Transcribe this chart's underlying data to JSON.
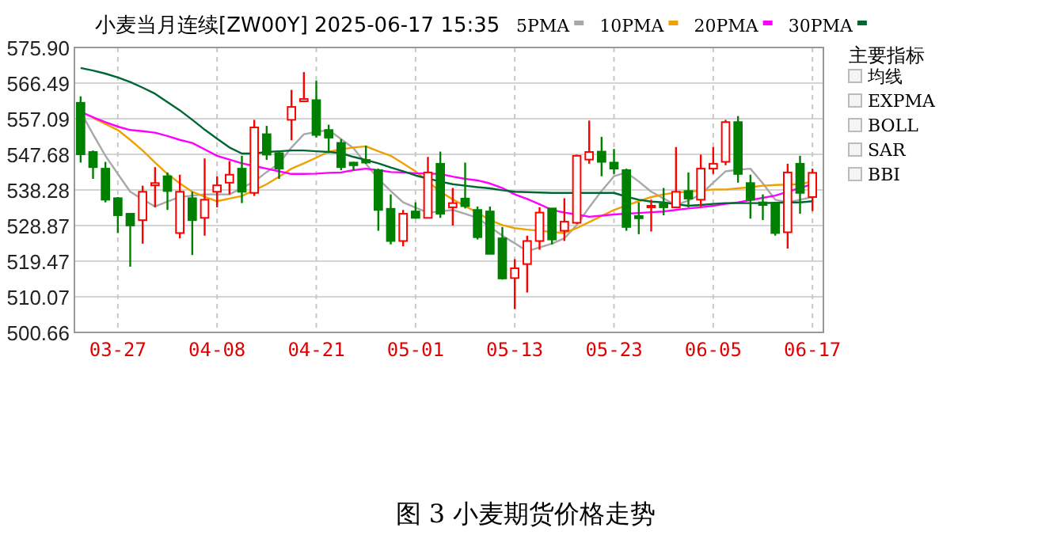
{
  "chart_data": {
    "type": "candlestick",
    "title": "小麦当月连续[ZW00Y] 2025-06-17 15:35",
    "categories": [
      null,
      null,
      null,
      "03-27",
      null,
      null,
      null,
      null,
      null,
      null,
      null,
      "04-08",
      null,
      null,
      null,
      null,
      null,
      null,
      null,
      "04-21",
      null,
      null,
      null,
      null,
      null,
      null,
      null,
      "05-01",
      null,
      null,
      null,
      null,
      null,
      null,
      null,
      "05-13",
      null,
      null,
      null,
      null,
      null,
      null,
      null,
      "05-23",
      null,
      null,
      null,
      null,
      null,
      null,
      null,
      "06-05",
      null,
      null,
      null,
      null,
      null,
      null,
      null,
      "06-17"
    ],
    "ohlc": [
      [
        561.3,
        563.0,
        545.5,
        547.7
      ],
      [
        548.3,
        548.7,
        541.2,
        544.3
      ],
      [
        543.9,
        545.7,
        535.0,
        535.7
      ],
      [
        536.1,
        536.4,
        526.9,
        531.6
      ],
      [
        532.0,
        532.0,
        518.0,
        528.9
      ],
      [
        530.3,
        539.4,
        524.1,
        537.8
      ],
      [
        539.5,
        544.3,
        533.7,
        540.1
      ],
      [
        541.9,
        542.9,
        533.0,
        538.0
      ],
      [
        526.9,
        542.3,
        525.5,
        537.8
      ],
      [
        536.1,
        537.8,
        521.1,
        530.3
      ],
      [
        530.9,
        546.6,
        526.2,
        535.7
      ],
      [
        537.8,
        541.9,
        533.7,
        539.5
      ],
      [
        540.2,
        545.9,
        537.1,
        542.3
      ],
      [
        543.9,
        547.3,
        534.8,
        537.8
      ],
      [
        537.5,
        556.8,
        536.7,
        554.8
      ],
      [
        553.0,
        555.2,
        546.2,
        547.6
      ],
      [
        548.0,
        548.7,
        541.2,
        543.9
      ],
      [
        556.8,
        564.7,
        551.4,
        560.2
      ],
      [
        561.7,
        569.4,
        561.7,
        562.3
      ],
      [
        562.0,
        567.1,
        552.1,
        552.8
      ],
      [
        554.1,
        555.5,
        548.0,
        552.1
      ],
      [
        550.7,
        551.7,
        543.5,
        544.3
      ],
      [
        545.5,
        545.7,
        543.5,
        544.8
      ],
      [
        546.2,
        550.0,
        545.2,
        545.5
      ],
      [
        543.5,
        543.9,
        527.5,
        533.0
      ],
      [
        533.3,
        537.1,
        523.9,
        524.8
      ],
      [
        524.8,
        533.0,
        523.4,
        532.0
      ],
      [
        532.6,
        535.0,
        530.9,
        530.9
      ],
      [
        530.9,
        547.0,
        530.9,
        542.9
      ],
      [
        545.2,
        548.4,
        530.9,
        532.0
      ],
      [
        533.7,
        538.8,
        528.9,
        534.8
      ],
      [
        536.0,
        545.5,
        533.4,
        534.0
      ],
      [
        533.0,
        533.9,
        525.2,
        525.8
      ],
      [
        532.6,
        533.9,
        521.4,
        521.4
      ],
      [
        525.5,
        528.5,
        514.6,
        514.9
      ],
      [
        515.0,
        520.0,
        506.8,
        517.6
      ],
      [
        518.7,
        526.2,
        511.2,
        524.8
      ],
      [
        524.8,
        533.7,
        522.5,
        532.3
      ],
      [
        533.4,
        533.4,
        523.9,
        525.2
      ],
      [
        527.5,
        536.1,
        524.8,
        529.9
      ],
      [
        529.6,
        547.6,
        529.3,
        547.3
      ],
      [
        546.3,
        556.6,
        545.2,
        548.3
      ],
      [
        548.4,
        552.3,
        541.9,
        545.7
      ],
      [
        545.5,
        549.1,
        542.5,
        543.9
      ],
      [
        543.5,
        543.9,
        527.5,
        528.5
      ],
      [
        531.4,
        535.0,
        526.6,
        530.8
      ],
      [
        533.7,
        535.7,
        527.3,
        534.1
      ],
      [
        534.6,
        538.8,
        531.6,
        533.7
      ],
      [
        533.7,
        549.6,
        533.7,
        537.8
      ],
      [
        538.0,
        542.9,
        533.7,
        536.0
      ],
      [
        535.7,
        547.6,
        533.9,
        543.9
      ],
      [
        543.9,
        549.6,
        542.5,
        545.2
      ],
      [
        545.7,
        556.8,
        544.8,
        556.2
      ],
      [
        556.2,
        557.8,
        540.2,
        542.5
      ],
      [
        540.1,
        542.3,
        530.7,
        535.7
      ],
      [
        535.0,
        537.1,
        530.3,
        534.3
      ],
      [
        534.8,
        535.0,
        526.2,
        526.9
      ],
      [
        527.1,
        545.2,
        522.8,
        542.9
      ],
      [
        545.2,
        547.3,
        532.0,
        537.5
      ],
      [
        536.4,
        543.9,
        532.7,
        542.8
      ]
    ],
    "series": [
      {
        "name": "5PMA",
        "type": "line",
        "color": "#a8a8a8",
        "values": [
          558.9,
          553.0,
          547.3,
          542.5,
          537.8,
          535.8,
          533.9,
          535.2,
          536.4,
          536.8,
          537.1,
          537.1,
          537.1,
          538.8,
          540.5,
          543.0,
          545.3,
          549.5,
          553.0,
          553.6,
          554.1,
          551.7,
          549.3,
          545.2,
          541.2,
          538.0,
          535.0,
          533.6,
          532.3,
          532.6,
          533.0,
          532.0,
          530.9,
          528.5,
          526.2,
          524.2,
          522.1,
          523.1,
          524.1,
          525.5,
          529.0,
          533.7,
          538.0,
          541.9,
          542.9,
          540.5,
          537.8,
          536.0,
          534.3,
          535.5,
          537.1,
          540.2,
          543.2,
          543.6,
          543.9,
          540.0,
          535.7,
          535.0,
          535.7,
          536.4
        ]
      },
      {
        "name": "10PMA",
        "type": "line",
        "color": "#f0a000",
        "values": [
          null,
          557.3,
          555.7,
          554.1,
          551.5,
          548.7,
          545.5,
          542.5,
          540.0,
          537.8,
          536.5,
          535.3,
          536.0,
          536.7,
          538.2,
          539.8,
          541.8,
          543.9,
          545.3,
          546.8,
          548.4,
          549.0,
          549.5,
          549.8,
          548.5,
          547.3,
          545.3,
          543.2,
          540.5,
          537.8,
          535.8,
          534.0,
          532.3,
          530.3,
          529.0,
          528.2,
          527.8,
          527.5,
          527.2,
          526.9,
          528.2,
          529.8,
          531.4,
          533.0,
          534.2,
          535.3,
          536.4,
          537.1,
          537.6,
          537.8,
          538.1,
          538.4,
          538.4,
          538.7,
          539.0,
          539.4,
          539.6,
          539.7,
          539.8,
          540.5
        ]
      },
      {
        "name": "20PMA",
        "type": "line",
        "color": "#ff00ff",
        "values": [
          558.9,
          557.5,
          556.2,
          555.0,
          554.1,
          553.8,
          553.4,
          552.5,
          551.5,
          550.7,
          549.0,
          547.3,
          546.3,
          545.3,
          544.6,
          543.9,
          543.2,
          542.5,
          542.5,
          542.6,
          542.8,
          542.9,
          543.5,
          543.9,
          543.5,
          543.0,
          542.9,
          542.7,
          542.6,
          542.5,
          541.8,
          541.2,
          540.8,
          540.0,
          538.8,
          537.1,
          535.9,
          534.5,
          533.0,
          532.3,
          531.8,
          531.2,
          531.5,
          531.8,
          532.0,
          532.2,
          532.4,
          532.6,
          533.0,
          533.4,
          533.7,
          534.1,
          534.6,
          535.0,
          535.6,
          536.2,
          536.8,
          537.8,
          538.8,
          539.8
        ]
      },
      {
        "name": "30PMA",
        "type": "line",
        "color": "#006633",
        "values": [
          570.5,
          569.8,
          569.0,
          568.0,
          566.8,
          565.3,
          563.7,
          561.5,
          559.3,
          556.8,
          554.2,
          551.8,
          549.5,
          547.9,
          547.9,
          548.3,
          548.5,
          548.7,
          548.7,
          548.5,
          548.3,
          548.0,
          547.0,
          546.2,
          545.3,
          544.2,
          543.2,
          542.1,
          541.3,
          540.5,
          539.8,
          539.4,
          539.0,
          538.7,
          538.2,
          537.8,
          537.7,
          537.6,
          537.5,
          537.5,
          537.5,
          537.5,
          537.5,
          537.5,
          536.5,
          535.7,
          535.2,
          535.0,
          534.5,
          534.1,
          534.3,
          534.6,
          534.8,
          534.8,
          534.8,
          534.8,
          534.9,
          535.0,
          535.0,
          535.3
        ]
      }
    ],
    "ylim": [
      500.66,
      575.9
    ],
    "yticks": [
      {
        "value": 575.9,
        "label": "575.90"
      },
      566.49,
      557.09,
      547.68,
      538.28,
      528.87,
      519.47,
      510.07,
      500.66
    ],
    "grid": true,
    "legend": "top right",
    "annotations": [
      "主要指标",
      "均线",
      "EXPMA",
      "BOLL",
      "SAR",
      "BBI",
      "图 3   小麦期货价格走势"
    ]
  }
}
